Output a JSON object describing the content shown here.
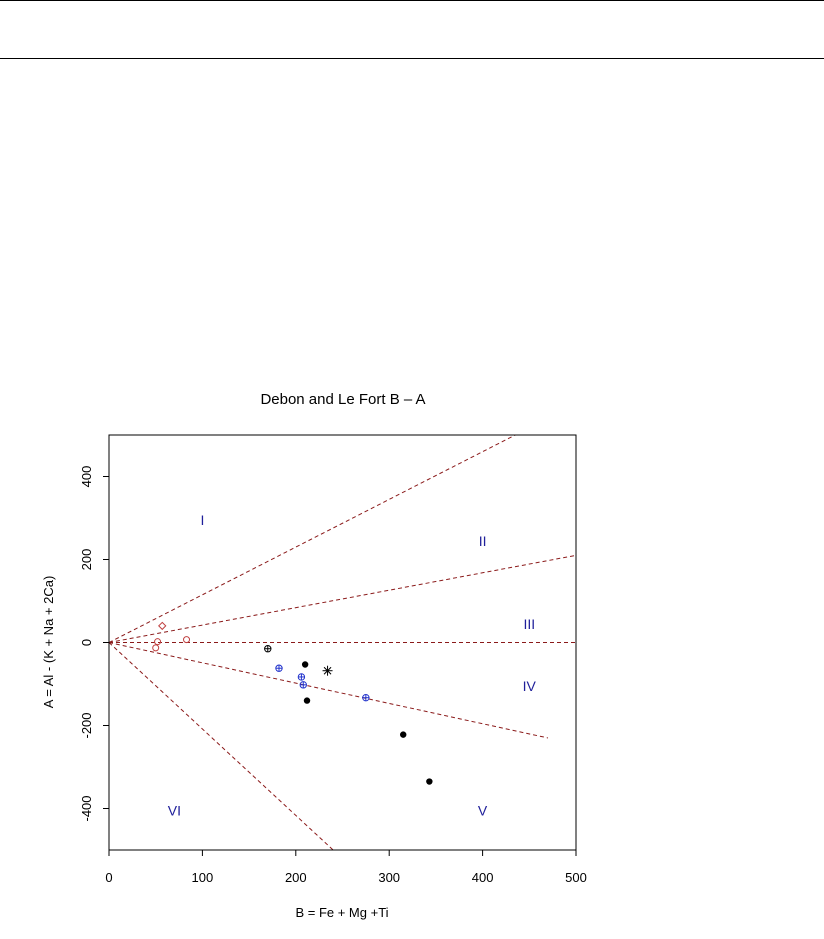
{
  "colors": {
    "background": "#ffffff",
    "rules": "#000000",
    "axes": "#000000",
    "boundaries": "#8b1a1a",
    "field_labels": "#1f1f9a",
    "sample_red": "#c04040",
    "sample_blue": "#2233cc",
    "sample_black": "#000000"
  },
  "chart_data": {
    "type": "scatter",
    "title": "Debon and Le Fort B – A",
    "xlabel": "B = Fe + Mg +Ti",
    "ylabel": "A = Al - (K + Na + 2Ca)",
    "xlim": [
      0,
      500
    ],
    "ylim": [
      -500,
      500
    ],
    "x_ticks": [
      0,
      100,
      200,
      300,
      400,
      500
    ],
    "y_ticks": [
      -400,
      -200,
      0,
      200,
      400
    ],
    "grid": false,
    "boundaries": [
      {
        "points": [
          [
            0,
            0
          ],
          [
            435,
            500
          ]
        ]
      },
      {
        "points": [
          [
            0,
            0
          ],
          [
            500,
            210
          ]
        ]
      },
      {
        "points": [
          [
            0,
            0
          ],
          [
            500,
            0
          ]
        ]
      },
      {
        "points": [
          [
            0,
            0
          ],
          [
            470,
            -230
          ]
        ]
      },
      {
        "points": [
          [
            0,
            0
          ],
          [
            240,
            -500
          ]
        ]
      }
    ],
    "fields": [
      {
        "label": "I",
        "x": 100,
        "y": 295
      },
      {
        "label": "II",
        "x": 400,
        "y": 245
      },
      {
        "label": "III",
        "x": 450,
        "y": 45
      },
      {
        "label": "IV",
        "x": 450,
        "y": -105
      },
      {
        "label": "V",
        "x": 400,
        "y": -405
      },
      {
        "label": "VI",
        "x": 70,
        "y": -405
      }
    ],
    "series": [
      {
        "marker": "diamond",
        "color": "red",
        "points": [
          [
            57,
            40
          ]
        ]
      },
      {
        "marker": "open-circle",
        "color": "red",
        "points": [
          [
            52,
            2
          ],
          [
            83,
            7
          ],
          [
            50,
            -13
          ]
        ]
      },
      {
        "marker": "circle-plus",
        "color": "black",
        "points": [
          [
            170,
            -15
          ]
        ]
      },
      {
        "marker": "circle-plus",
        "color": "blue",
        "points": [
          [
            182,
            -62
          ],
          [
            206,
            -83
          ],
          [
            208,
            -102
          ],
          [
            275,
            -133
          ]
        ]
      },
      {
        "marker": "filled-circle",
        "color": "black",
        "points": [
          [
            210,
            -53
          ],
          [
            212,
            -140
          ],
          [
            315,
            -222
          ],
          [
            343,
            -335
          ]
        ]
      },
      {
        "marker": "star",
        "color": "black",
        "points": [
          [
            234,
            -68
          ]
        ]
      }
    ]
  }
}
